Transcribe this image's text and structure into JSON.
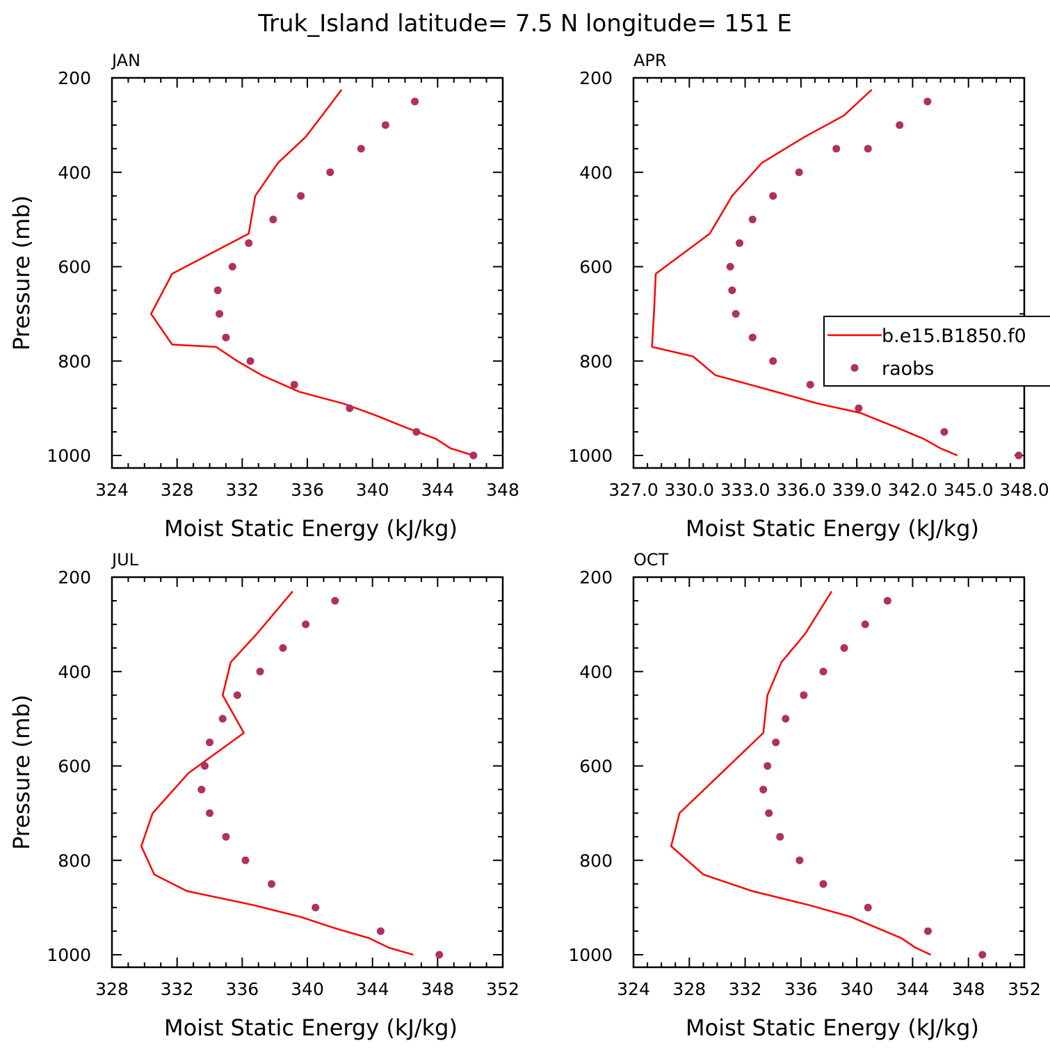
{
  "figure": {
    "title": "Truk_Island  latitude= 7.5 N longitude= 151 E",
    "ylabel": "Pressure (mb)",
    "xlabel": "Moist Static Energy (kJ/kg)"
  },
  "colors": {
    "model": "#ff0000",
    "obs": "#b03060",
    "axes": "#000000"
  },
  "legend": {
    "placement": "right-middle of APR panel (clipped)",
    "entries": [
      "b.e15.B1850.f0",
      "raobs"
    ]
  },
  "chart_data": [
    {
      "type": "line",
      "panel": "JAN",
      "xlabel": "Moist Static Energy (kJ/kg)",
      "ylabel": "Pressure (mb)",
      "xlim": [
        324,
        348
      ],
      "ylim": [
        1000,
        200
      ],
      "y_inverted": true,
      "xticks": [
        324,
        328,
        332,
        336,
        340,
        344,
        348
      ],
      "xtick_labels": [
        "324",
        "328",
        "332",
        "336",
        "340",
        "344",
        "348"
      ],
      "yticks": [
        200,
        400,
        600,
        800,
        1000
      ],
      "ytick_labels": [
        "200",
        "400",
        "600",
        "800",
        "1000"
      ],
      "series": [
        {
          "name": "b.e15.B1850.f0",
          "kind": "line",
          "x": [
            346.2,
            344.8,
            343.9,
            342.0,
            340.2,
            338.2,
            335.5,
            333.2,
            331.7,
            330.4,
            327.7,
            326.4,
            327.7,
            332.4,
            332.8,
            334.2,
            335.9,
            336.9,
            338.1
          ],
          "y": [
            1000,
            985,
            965,
            940,
            915,
            890,
            865,
            830,
            800,
            770,
            765,
            700,
            615,
            530,
            450,
            380,
            325,
            280,
            225
          ]
        },
        {
          "name": "raobs",
          "kind": "scatter",
          "x": [
            346.2,
            342.7,
            338.6,
            335.2,
            332.5,
            331.0,
            330.6,
            330.5,
            331.4,
            332.4,
            333.9,
            335.6,
            337.4,
            339.3,
            340.8,
            342.6
          ],
          "y": [
            1000,
            950,
            900,
            850,
            800,
            750,
            700,
            650,
            600,
            550,
            500,
            450,
            400,
            350,
            300,
            250
          ]
        }
      ]
    },
    {
      "type": "line",
      "panel": "APR",
      "xlabel": "Moist Static Energy (kJ/kg)",
      "ylabel": "",
      "xlim": [
        327.0,
        348.0
      ],
      "ylim": [
        1000,
        200
      ],
      "y_inverted": true,
      "xticks": [
        327,
        330,
        333,
        336,
        339,
        342,
        345,
        348
      ],
      "xtick_labels": [
        "327.0",
        "330.0",
        "333.0",
        "336.0",
        "339.0",
        "342.0",
        "345.0",
        "348.0"
      ],
      "yticks": [
        200,
        400,
        600,
        800,
        1000
      ],
      "ytick_labels": [
        "200",
        "400",
        "600",
        "800",
        "1000"
      ],
      "series": [
        {
          "name": "b.e15.B1850.f0",
          "kind": "line",
          "x": [
            344.4,
            343.5,
            342.6,
            341.1,
            339.2,
            336.9,
            334.2,
            331.4,
            330.2,
            328.0,
            328.0,
            328.1,
            328.2,
            331.1,
            332.3,
            333.9,
            336.2,
            338.3,
            339.8
          ],
          "y": [
            1000,
            985,
            965,
            940,
            910,
            890,
            860,
            830,
            790,
            770,
            765,
            700,
            615,
            530,
            450,
            380,
            325,
            280,
            225
          ]
        },
        {
          "name": "raobs",
          "kind": "scatter",
          "x": [
            347.7,
            343.7,
            339.1,
            336.5,
            334.5,
            333.4,
            332.5,
            332.3,
            332.2,
            332.7,
            333.4,
            334.5,
            335.9,
            337.9,
            339.6,
            341.3,
            342.8
          ],
          "y": [
            1000,
            950,
            900,
            850,
            800,
            750,
            700,
            650,
            600,
            550,
            500,
            450,
            400,
            350,
            350,
            300,
            250
          ]
        }
      ]
    },
    {
      "type": "line",
      "panel": "JUL",
      "xlabel": "Moist Static Energy (kJ/kg)",
      "ylabel": "Pressure (mb)",
      "xlim": [
        328,
        352
      ],
      "ylim": [
        1000,
        200
      ],
      "y_inverted": true,
      "xticks": [
        328,
        332,
        336,
        340,
        344,
        348,
        352
      ],
      "xtick_labels": [
        "328",
        "332",
        "336",
        "340",
        "344",
        "348",
        "352"
      ],
      "yticks": [
        200,
        400,
        600,
        800,
        1000
      ],
      "ytick_labels": [
        "200",
        "400",
        "600",
        "800",
        "1000"
      ],
      "series": [
        {
          "name": "b.e15.B1850.f0",
          "kind": "line",
          "x": [
            346.5,
            345.0,
            343.8,
            341.8,
            339.6,
            336.7,
            332.6,
            330.6,
            329.8,
            330.5,
            332.7,
            336.1,
            334.8,
            335.3,
            336.9,
            339.1
          ],
          "y": [
            1000,
            985,
            965,
            945,
            920,
            895,
            865,
            830,
            770,
            700,
            615,
            530,
            450,
            380,
            320,
            230
          ]
        },
        {
          "name": "raobs",
          "kind": "scatter",
          "x": [
            348.1,
            344.5,
            340.5,
            337.8,
            336.2,
            335.0,
            334.0,
            333.5,
            333.7,
            334.0,
            334.8,
            335.7,
            337.1,
            338.5,
            339.9,
            341.7
          ],
          "y": [
            1000,
            950,
            900,
            850,
            800,
            750,
            700,
            650,
            600,
            550,
            500,
            450,
            400,
            350,
            300,
            250
          ]
        }
      ]
    },
    {
      "type": "line",
      "panel": "OCT",
      "xlabel": "Moist Static Energy (kJ/kg)",
      "ylabel": "",
      "xlim": [
        324,
        352
      ],
      "ylim": [
        1000,
        200
      ],
      "y_inverted": true,
      "xticks": [
        324,
        328,
        332,
        336,
        340,
        344,
        348,
        352
      ],
      "xtick_labels": [
        "324",
        "328",
        "332",
        "336",
        "340",
        "344",
        "348",
        "352"
      ],
      "yticks": [
        200,
        400,
        600,
        800,
        1000
      ],
      "ytick_labels": [
        "200",
        "400",
        "600",
        "800",
        "1000"
      ],
      "series": [
        {
          "name": "b.e15.B1850.f0",
          "kind": "line",
          "x": [
            345.3,
            344.2,
            343.2,
            341.6,
            339.6,
            336.6,
            332.5,
            329.0,
            326.7,
            327.3,
            330.3,
            333.3,
            333.6,
            334.6,
            336.3,
            338.2
          ],
          "y": [
            1000,
            985,
            965,
            945,
            920,
            895,
            865,
            830,
            770,
            700,
            615,
            530,
            450,
            380,
            320,
            230
          ]
        },
        {
          "name": "raobs",
          "kind": "scatter",
          "x": [
            349.0,
            345.1,
            340.8,
            337.6,
            335.9,
            334.5,
            333.7,
            333.3,
            333.6,
            334.2,
            334.9,
            336.2,
            337.6,
            339.1,
            340.6,
            342.2
          ],
          "y": [
            1000,
            950,
            900,
            850,
            800,
            750,
            700,
            650,
            600,
            550,
            500,
            450,
            400,
            350,
            300,
            250
          ]
        }
      ]
    }
  ]
}
